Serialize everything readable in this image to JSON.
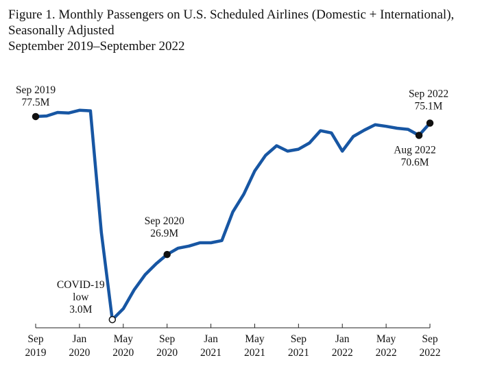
{
  "title": {
    "line1": "Figure 1. Monthly Passengers on U.S. Scheduled Airlines (Domestic + International),",
    "line2": "Seasonally Adjusted",
    "line3": "September 2019–September 2022"
  },
  "colors": {
    "line": "#1756a3",
    "axis": "#222222",
    "marker": "#111111"
  },
  "chart_data": {
    "type": "line",
    "title": "Figure 1. Monthly Passengers on U.S. Scheduled Airlines (Domestic + International), Seasonally Adjusted September 2019–September 2022",
    "xlabel": "",
    "ylabel": "",
    "grid": false,
    "legend": "none",
    "x_range": [
      "2019-09",
      "2022-09"
    ],
    "ylim": [
      0,
      80
    ],
    "x_ticks": [
      {
        "month": "2019-09",
        "line1": "Sep",
        "line2": "2019"
      },
      {
        "month": "2020-01",
        "line1": "Jan",
        "line2": "2020"
      },
      {
        "month": "2020-05",
        "line1": "May",
        "line2": "2020"
      },
      {
        "month": "2020-09",
        "line1": "Sep",
        "line2": "2020"
      },
      {
        "month": "2021-01",
        "line1": "Jan",
        "line2": "2021"
      },
      {
        "month": "2021-05",
        "line1": "May",
        "line2": "2021"
      },
      {
        "month": "2021-09",
        "line1": "Sep",
        "line2": "2021"
      },
      {
        "month": "2022-01",
        "line1": "Jan",
        "line2": "2022"
      },
      {
        "month": "2022-05",
        "line1": "May",
        "line2": "2022"
      },
      {
        "month": "2022-09",
        "line1": "Sep",
        "line2": "2022"
      }
    ],
    "series": [
      {
        "unit": "M",
        "points": [
          {
            "month": "2019-09",
            "value": 77.5
          },
          {
            "month": "2019-10",
            "value": 77.7
          },
          {
            "month": "2019-11",
            "value": 79.0
          },
          {
            "month": "2019-12",
            "value": 78.8
          },
          {
            "month": "2020-01",
            "value": 79.8
          },
          {
            "month": "2020-02",
            "value": 79.6
          },
          {
            "month": "2020-03",
            "value": 35.0
          },
          {
            "month": "2020-04",
            "value": 3.0
          },
          {
            "month": "2020-05",
            "value": 7.0
          },
          {
            "month": "2020-06",
            "value": 14.0
          },
          {
            "month": "2020-07",
            "value": 19.5
          },
          {
            "month": "2020-08",
            "value": 23.5
          },
          {
            "month": "2020-09",
            "value": 26.9
          },
          {
            "month": "2020-10",
            "value": 29.2
          },
          {
            "month": "2020-11",
            "value": 30.0
          },
          {
            "month": "2020-12",
            "value": 31.2
          },
          {
            "month": "2021-01",
            "value": 31.2
          },
          {
            "month": "2021-02",
            "value": 32.0
          },
          {
            "month": "2021-03",
            "value": 42.5
          },
          {
            "month": "2021-04",
            "value": 49.0
          },
          {
            "month": "2021-05",
            "value": 57.5
          },
          {
            "month": "2021-06",
            "value": 63.3
          },
          {
            "month": "2021-07",
            "value": 66.8
          },
          {
            "month": "2021-08",
            "value": 64.8
          },
          {
            "month": "2021-09",
            "value": 65.5
          },
          {
            "month": "2021-10",
            "value": 67.8
          },
          {
            "month": "2021-11",
            "value": 72.3
          },
          {
            "month": "2021-12",
            "value": 71.5
          },
          {
            "month": "2022-01",
            "value": 64.8
          },
          {
            "month": "2022-02",
            "value": 70.2
          },
          {
            "month": "2022-03",
            "value": 72.5
          },
          {
            "month": "2022-04",
            "value": 74.5
          },
          {
            "month": "2022-05",
            "value": 73.9
          },
          {
            "month": "2022-06",
            "value": 73.2
          },
          {
            "month": "2022-07",
            "value": 72.8
          },
          {
            "month": "2022-08",
            "value": 70.6
          },
          {
            "month": "2022-09",
            "value": 75.1
          }
        ]
      }
    ],
    "markers": [
      {
        "month": "2019-09",
        "value": 77.5,
        "style": "filled",
        "line1": "Sep 2019",
        "line2": "77.5M"
      },
      {
        "month": "2020-04",
        "value": 3.0,
        "style": "open",
        "line1": "COVID-19",
        "line2": "low",
        "line3": "3.0M"
      },
      {
        "month": "2020-09",
        "value": 26.9,
        "style": "filled",
        "line1": "Sep 2020",
        "line2": "26.9M"
      },
      {
        "month": "2022-08",
        "value": 70.6,
        "style": "filled",
        "line1": "Aug 2022",
        "line2": "70.6M"
      },
      {
        "month": "2022-09",
        "value": 75.1,
        "style": "filled",
        "line1": "Sep 2022",
        "line2": "75.1M"
      }
    ]
  }
}
